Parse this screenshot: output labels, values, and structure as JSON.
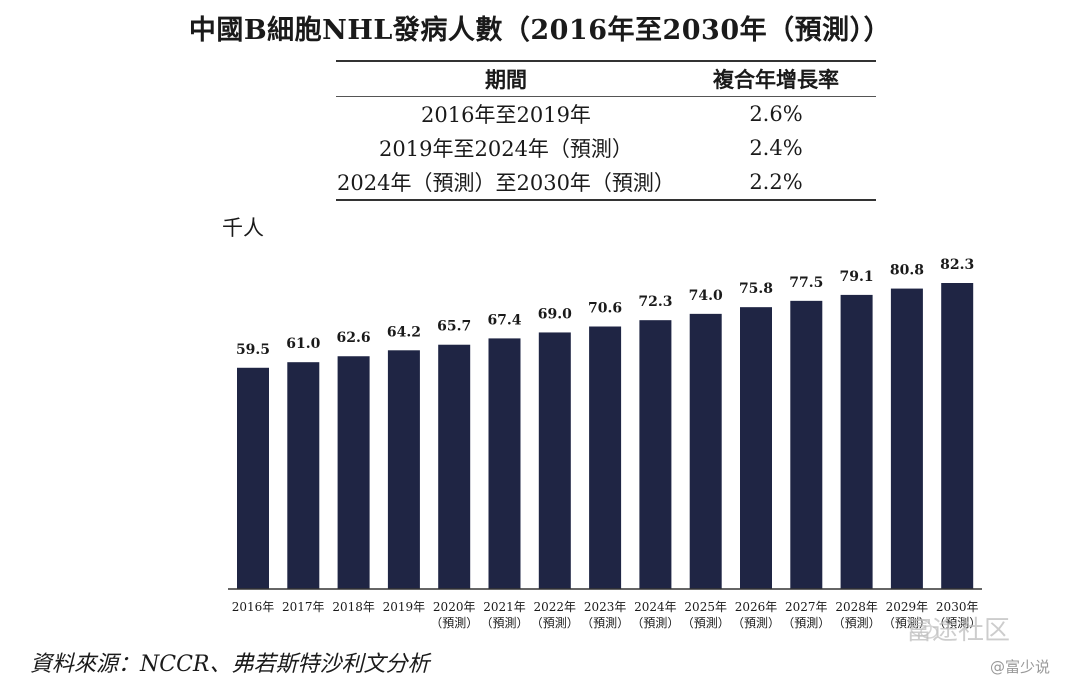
{
  "title": "中國B細胞NHL發病人數（2016年至2030年（預測））",
  "cagr_table": {
    "headers": [
      "期間",
      "複合年增長率"
    ],
    "rows": [
      {
        "period": "2016年至2019年",
        "rate": "2.6%"
      },
      {
        "period": "2019年至2024年（預測）",
        "rate": "2.4%"
      },
      {
        "period": "2024年（預測）至2030年（預測）",
        "rate": "2.2%"
      }
    ]
  },
  "unit_label": "千人",
  "source": "資料來源：NCCR、弗若斯特沙利文分析",
  "watermark": {
    "main": "富途社区",
    "sub": "@富少说"
  },
  "colors": {
    "bar": "#1f2544",
    "text": "#1a1a1a",
    "axis": "#333333"
  },
  "chart_data": {
    "type": "bar",
    "title": "中國B細胞NHL發病人數（2016年至2030年（預測））",
    "ylabel": "千人",
    "categories": [
      "2016年",
      "2017年",
      "2018年",
      "2019年",
      "2020年",
      "2021年",
      "2022年",
      "2023年",
      "2024年",
      "2025年",
      "2026年",
      "2027年",
      "2028年",
      "2029年",
      "2030年"
    ],
    "category_sublabels": [
      "",
      "",
      "",
      "",
      "（預測）",
      "（預測）",
      "（預測）",
      "（預測）",
      "（預測）",
      "（預測）",
      "（預測）",
      "（預測）",
      "（預測）",
      "（預測）",
      "（預測）"
    ],
    "values": [
      59.5,
      61.0,
      62.6,
      64.2,
      65.7,
      67.4,
      69.0,
      70.6,
      72.3,
      74.0,
      75.8,
      77.5,
      79.1,
      80.8,
      82.3
    ],
    "value_labels": [
      "59.5",
      "61.0",
      "62.6",
      "64.2",
      "65.7",
      "67.4",
      "69.0",
      "70.6",
      "72.3",
      "74.0",
      "75.8",
      "77.5",
      "79.1",
      "80.8",
      "82.3"
    ],
    "ylim": [
      0,
      82.3
    ],
    "grid": false,
    "legend": "none"
  }
}
